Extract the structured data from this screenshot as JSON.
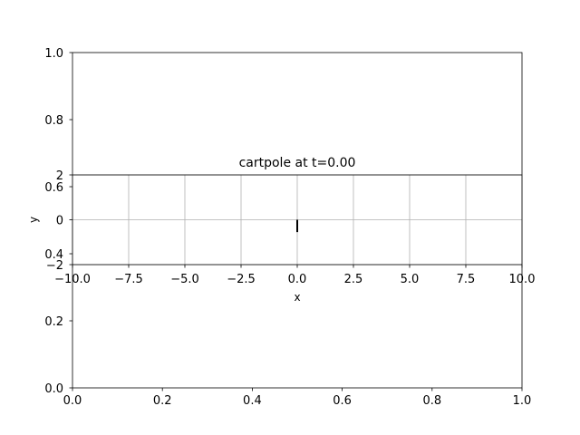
{
  "chart_data": [
    {
      "type": "scatter",
      "role": "background-axes",
      "xlim": [
        0.0,
        1.0
      ],
      "ylim": [
        0.0,
        1.0
      ],
      "grid": false,
      "xticks": [
        {
          "value": 0.0,
          "label": "0.0"
        },
        {
          "value": 0.2,
          "label": "0.2"
        },
        {
          "value": 0.4,
          "label": "0.4"
        },
        {
          "value": 0.6,
          "label": "0.6"
        },
        {
          "value": 0.8,
          "label": "0.8"
        },
        {
          "value": 1.0,
          "label": "1.0"
        }
      ],
      "yticks": [
        {
          "value": 0.0,
          "label": "0.0"
        },
        {
          "value": 0.2,
          "label": "0.2"
        },
        {
          "value": 0.4,
          "label": "0.4"
        },
        {
          "value": 0.6,
          "label": "0.6"
        },
        {
          "value": 0.8,
          "label": "0.8"
        },
        {
          "value": 1.0,
          "label": "1.0"
        }
      ],
      "series": []
    },
    {
      "type": "line",
      "role": "cartpole-axes",
      "title": "cartpole at t=0.00",
      "xlabel": "x",
      "ylabel": "y",
      "xlim": [
        -10.0,
        10.0
      ],
      "ylim": [
        -2.0,
        2.0
      ],
      "grid": true,
      "xticks": [
        {
          "value": -10.0,
          "label": "−10.0"
        },
        {
          "value": -7.5,
          "label": "−7.5"
        },
        {
          "value": -5.0,
          "label": "−5.0"
        },
        {
          "value": -2.5,
          "label": "−2.5"
        },
        {
          "value": 0.0,
          "label": "0.0"
        },
        {
          "value": 2.5,
          "label": "2.5"
        },
        {
          "value": 5.0,
          "label": "5.0"
        },
        {
          "value": 7.5,
          "label": "7.5"
        },
        {
          "value": 10.0,
          "label": "10.0"
        }
      ],
      "yticks": [
        {
          "value": -2.0,
          "label": "−2"
        },
        {
          "value": 0.0,
          "label": "0"
        },
        {
          "value": 2.0,
          "label": "2"
        }
      ],
      "series": [
        {
          "x": [
            0.0,
            0.0
          ],
          "y": [
            0.0,
            -0.55
          ],
          "color": "#000000"
        }
      ]
    }
  ]
}
